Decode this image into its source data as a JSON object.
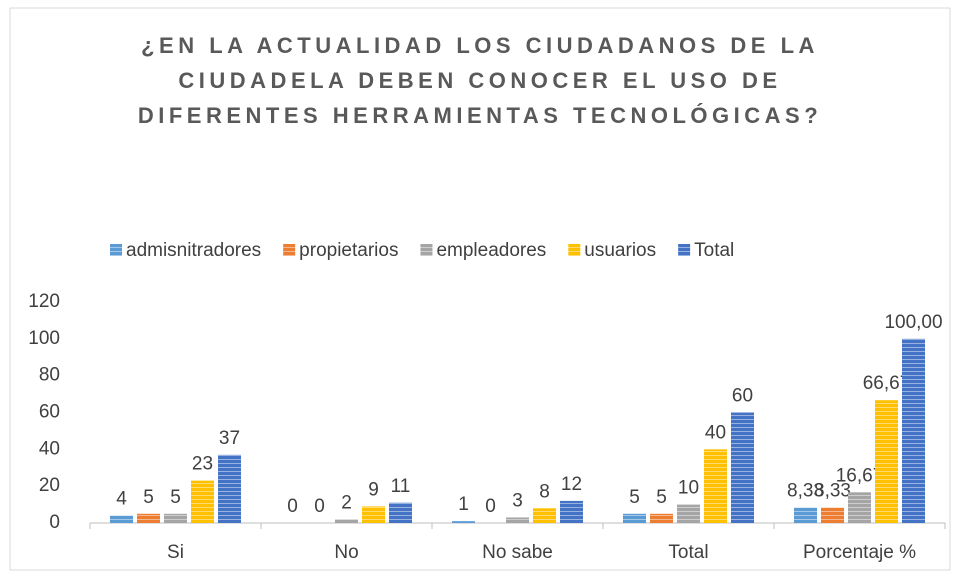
{
  "chart_data": {
    "type": "bar",
    "title": [
      "¿EN LA ACTUALIDAD LOS CIUDADANOS DE LA",
      "CIUDADELA DEBEN CONOCER EL USO DE",
      "DIFERENTES HERRAMIENTAS TECNOLÓGICAS?"
    ],
    "categories": [
      "Si",
      "No",
      "No sabe",
      "Total",
      "Porcentaje %"
    ],
    "series": [
      {
        "name": "admisnitradores",
        "color": "#5b9bd5",
        "values": [
          4,
          0,
          1,
          5,
          8.33
        ],
        "value_labels": [
          "4",
          "0",
          "1",
          "5",
          "8,33"
        ]
      },
      {
        "name": "propietarios",
        "color": "#ed7d31",
        "values": [
          5,
          0,
          0,
          5,
          8.33
        ],
        "value_labels": [
          "5",
          "0",
          "0",
          "5",
          "8,33"
        ]
      },
      {
        "name": "empleadores",
        "color": "#a5a5a5",
        "values": [
          5,
          2,
          3,
          10,
          16.67
        ],
        "value_labels": [
          "5",
          "2",
          "3",
          "10",
          "16,67"
        ]
      },
      {
        "name": "usuarios",
        "color": "#ffc000",
        "values": [
          23,
          9,
          8,
          40,
          66.67
        ],
        "value_labels": [
          "23",
          "9",
          "8",
          "40",
          "66,67"
        ]
      },
      {
        "name": "Total",
        "color": "#4472c4",
        "values": [
          37,
          11,
          12,
          60,
          100
        ],
        "value_labels": [
          "37",
          "11",
          "12",
          "60",
          "100,00"
        ]
      }
    ],
    "ylim": [
      0,
      120
    ],
    "yticks": [
      0,
      20,
      40,
      60,
      80,
      100,
      120
    ],
    "grid": false,
    "legend": "top"
  }
}
